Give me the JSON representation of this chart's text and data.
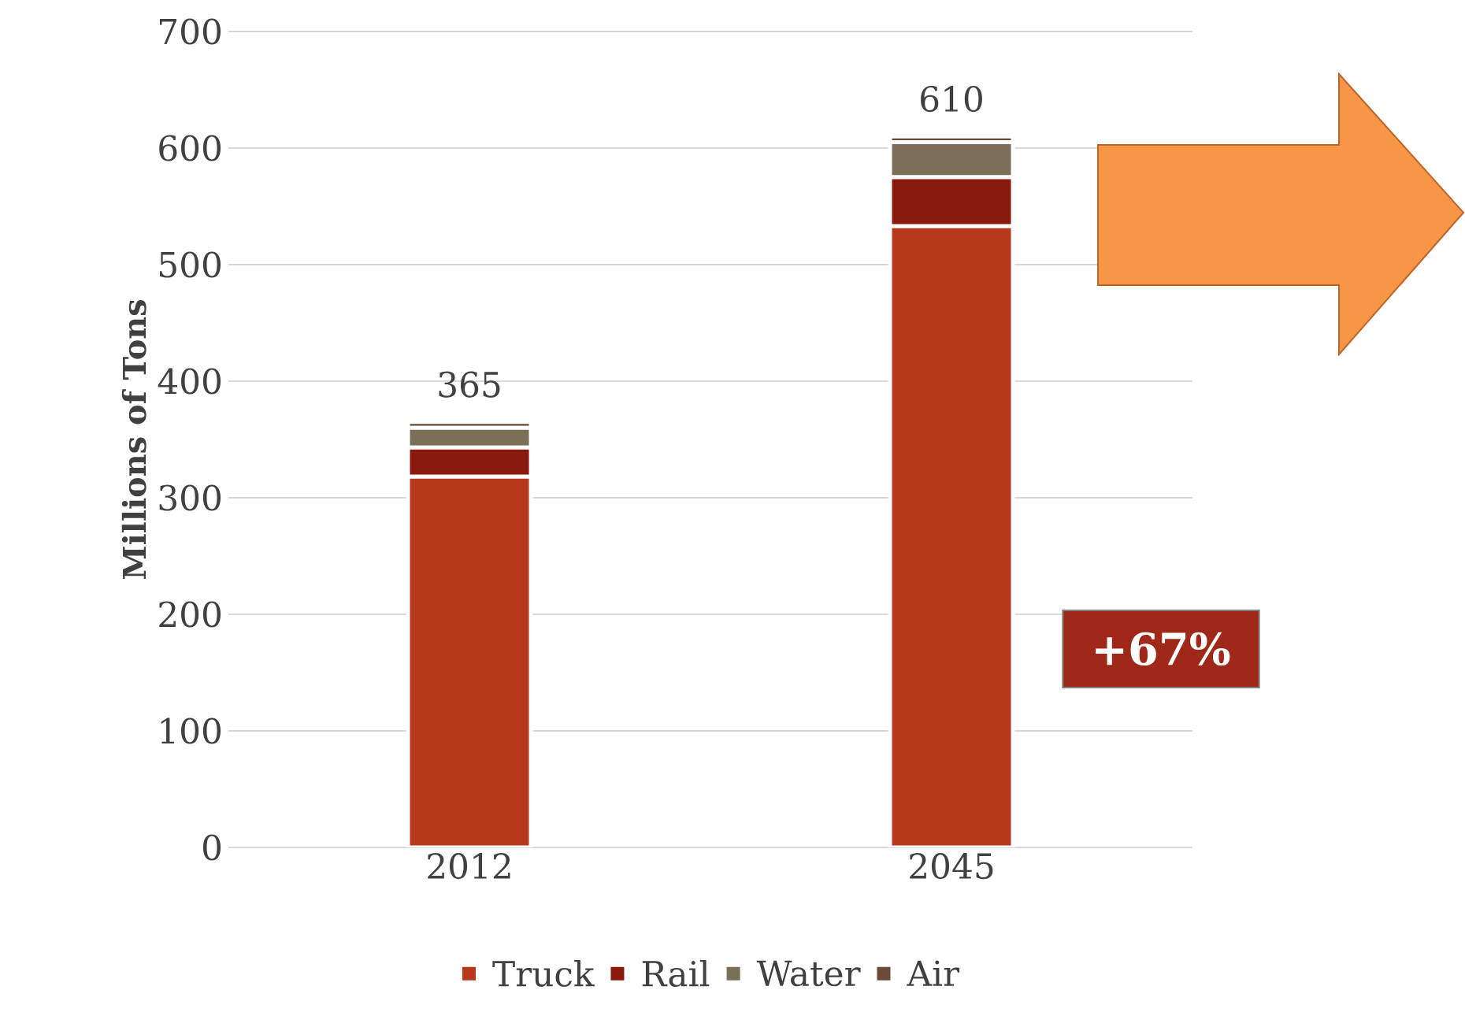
{
  "chart_data": {
    "type": "bar",
    "stacked": true,
    "ylabel": "Millions of Tons",
    "categories": [
      "2012",
      "2045"
    ],
    "series": [
      {
        "name": "Truck",
        "color": "#b5391a",
        "values": [
          318,
          533
        ]
      },
      {
        "name": "Rail",
        "color": "#8b1a0e",
        "values": [
          25,
          42
        ]
      },
      {
        "name": "Water",
        "color": "#7a7058",
        "values": [
          17,
          30
        ]
      },
      {
        "name": "Air",
        "color": "#6b4a3a",
        "values": [
          5,
          5
        ]
      }
    ],
    "totals": [
      "365",
      "610"
    ],
    "ylim": [
      0,
      700
    ],
    "yticks": [
      0,
      100,
      200,
      300,
      400,
      500,
      600,
      700
    ],
    "grid": "y",
    "legend": "bottom",
    "annotations": [
      "+67%"
    ]
  }
}
